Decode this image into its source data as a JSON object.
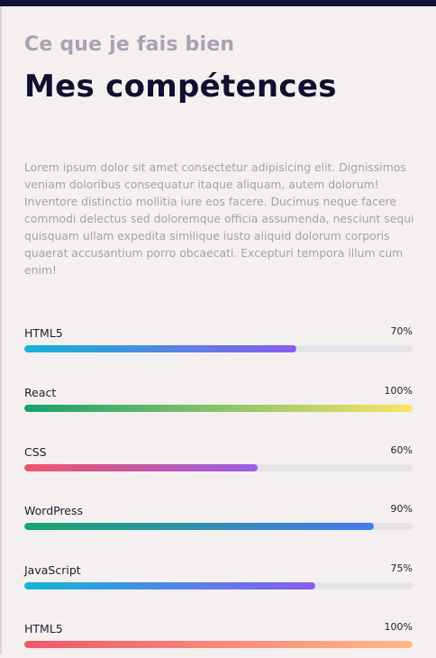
{
  "section": {
    "subtitle": "Ce que je fais bien",
    "title": "Mes compétences",
    "description": "Lorem ipsum dolor sit amet consectetur adipisicing elit. Dignissimos veniam doloribus consequatur itaque aliquam, autem dolorum! Inventore distinctio mollitia iure eos facere. Ducimus neque facere commodi delectus sed doloremque officia assumenda, nesciunt sequi quisquam ullam expedita similique iusto aliquid dolorum corporis quaerat accusantium porro obcaecati. Excepturi tempora illum cum enim!"
  },
  "skills": [
    {
      "name": "HTML5",
      "percent_label": "70%",
      "level": 70,
      "gradient": [
        "#12b5d6",
        "#8a5cf0"
      ]
    },
    {
      "name": "React",
      "percent_label": "100%",
      "level": 100,
      "gradient": [
        "#16a06e",
        "#fae663"
      ]
    },
    {
      "name": "CSS",
      "percent_label": "60%",
      "level": 60,
      "gradient": [
        "#ef5468",
        "#9b5fe6"
      ]
    },
    {
      "name": "WordPress",
      "percent_label": "90%",
      "level": 90,
      "gradient": [
        "#18a56c",
        "#4779ef"
      ]
    },
    {
      "name": "JavaScript",
      "percent_label": "75%",
      "level": 75,
      "gradient": [
        "#12b5d6",
        "#8a5cf0"
      ]
    },
    {
      "name": "HTML5",
      "percent_label": "100%",
      "level": 100,
      "gradient": [
        "#f0566a",
        "#ffb98a"
      ]
    }
  ],
  "colors": {
    "background": "#f5f0f0",
    "top_bar": "#13113a",
    "title": "#100f2e",
    "subtitle": "#a7a3b3",
    "description": "#a4a0ab",
    "track": "#e4e4e8"
  }
}
